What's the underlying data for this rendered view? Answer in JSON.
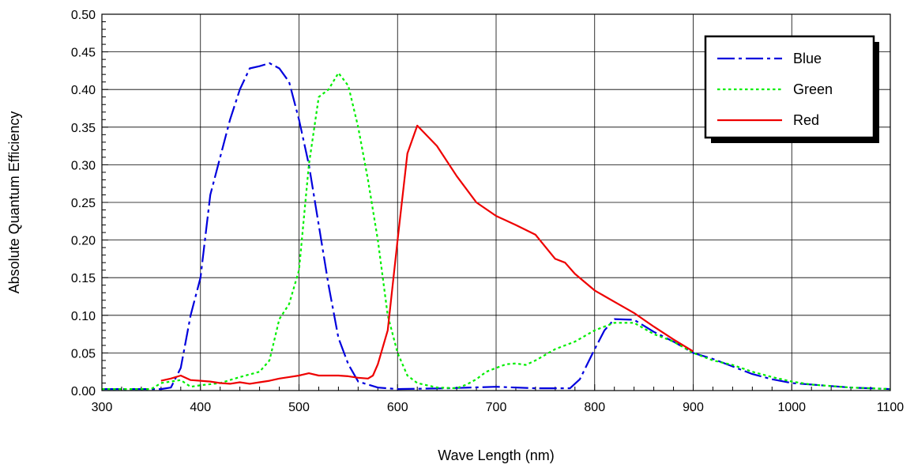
{
  "chart_data": {
    "type": "line",
    "xlabel": "Wave Length (nm)",
    "ylabel": "Absolute Quantum Efficiency",
    "xlim": [
      300,
      1100
    ],
    "ylim": [
      0,
      0.5
    ],
    "x_ticks": [
      "300",
      "400",
      "500",
      "600",
      "700",
      "800",
      "900",
      "1000",
      "1100"
    ],
    "y_ticks": [
      "0.00",
      "0.05",
      "0.10",
      "0.15",
      "0.20",
      "0.25",
      "0.30",
      "0.35",
      "0.40",
      "0.45",
      "0.50"
    ],
    "grid": true,
    "legend_position": "top-right",
    "series": [
      {
        "name": "Blue",
        "color": "#0000dd",
        "dash": "dash-dot",
        "points": [
          [
            300,
            0.002
          ],
          [
            360,
            0.002
          ],
          [
            370,
            0.004
          ],
          [
            380,
            0.03
          ],
          [
            390,
            0.1
          ],
          [
            400,
            0.15
          ],
          [
            410,
            0.26
          ],
          [
            420,
            0.31
          ],
          [
            430,
            0.36
          ],
          [
            440,
            0.4
          ],
          [
            450,
            0.428
          ],
          [
            460,
            0.431
          ],
          [
            470,
            0.435
          ],
          [
            480,
            0.428
          ],
          [
            490,
            0.41
          ],
          [
            500,
            0.36
          ],
          [
            510,
            0.3
          ],
          [
            520,
            0.22
          ],
          [
            530,
            0.14
          ],
          [
            540,
            0.07
          ],
          [
            550,
            0.035
          ],
          [
            560,
            0.012
          ],
          [
            570,
            0.008
          ],
          [
            580,
            0.004
          ],
          [
            600,
            0.002
          ],
          [
            650,
            0.003
          ],
          [
            700,
            0.005
          ],
          [
            740,
            0.003
          ],
          [
            775,
            0.003
          ],
          [
            785,
            0.015
          ],
          [
            800,
            0.055
          ],
          [
            810,
            0.08
          ],
          [
            820,
            0.095
          ],
          [
            840,
            0.094
          ],
          [
            860,
            0.078
          ],
          [
            880,
            0.065
          ],
          [
            900,
            0.05
          ],
          [
            920,
            0.042
          ],
          [
            940,
            0.032
          ],
          [
            960,
            0.022
          ],
          [
            980,
            0.015
          ],
          [
            1000,
            0.01
          ],
          [
            1020,
            0.008
          ],
          [
            1040,
            0.006
          ],
          [
            1060,
            0.004
          ],
          [
            1080,
            0.003
          ],
          [
            1100,
            0.002
          ]
        ]
      },
      {
        "name": "Green",
        "color": "#00ee00",
        "dash": "dotted",
        "points": [
          [
            300,
            0.002
          ],
          [
            350,
            0.002
          ],
          [
            360,
            0.01
          ],
          [
            370,
            0.012
          ],
          [
            380,
            0.014
          ],
          [
            390,
            0.005
          ],
          [
            400,
            0.007
          ],
          [
            420,
            0.01
          ],
          [
            440,
            0.018
          ],
          [
            460,
            0.025
          ],
          [
            470,
            0.04
          ],
          [
            480,
            0.095
          ],
          [
            490,
            0.115
          ],
          [
            500,
            0.16
          ],
          [
            510,
            0.3
          ],
          [
            520,
            0.39
          ],
          [
            530,
            0.4
          ],
          [
            540,
            0.422
          ],
          [
            550,
            0.405
          ],
          [
            560,
            0.35
          ],
          [
            570,
            0.28
          ],
          [
            580,
            0.2
          ],
          [
            590,
            0.1
          ],
          [
            600,
            0.05
          ],
          [
            610,
            0.02
          ],
          [
            620,
            0.01
          ],
          [
            640,
            0.004
          ],
          [
            660,
            0.003
          ],
          [
            670,
            0.008
          ],
          [
            680,
            0.015
          ],
          [
            690,
            0.025
          ],
          [
            700,
            0.03
          ],
          [
            710,
            0.035
          ],
          [
            720,
            0.036
          ],
          [
            730,
            0.034
          ],
          [
            740,
            0.04
          ],
          [
            760,
            0.055
          ],
          [
            780,
            0.065
          ],
          [
            800,
            0.08
          ],
          [
            820,
            0.09
          ],
          [
            840,
            0.09
          ],
          [
            860,
            0.075
          ],
          [
            880,
            0.065
          ],
          [
            900,
            0.05
          ],
          [
            920,
            0.04
          ],
          [
            940,
            0.034
          ],
          [
            960,
            0.025
          ],
          [
            980,
            0.018
          ],
          [
            1000,
            0.012
          ],
          [
            1020,
            0.008
          ],
          [
            1040,
            0.006
          ],
          [
            1060,
            0.004
          ],
          [
            1080,
            0.003
          ],
          [
            1100,
            0.002
          ]
        ]
      },
      {
        "name": "Red",
        "color": "#ee0000",
        "dash": "solid",
        "points": [
          [
            360,
            0.013
          ],
          [
            370,
            0.016
          ],
          [
            380,
            0.02
          ],
          [
            390,
            0.014
          ],
          [
            400,
            0.013
          ],
          [
            410,
            0.012
          ],
          [
            420,
            0.01
          ],
          [
            430,
            0.009
          ],
          [
            440,
            0.011
          ],
          [
            450,
            0.009
          ],
          [
            460,
            0.011
          ],
          [
            470,
            0.013
          ],
          [
            480,
            0.016
          ],
          [
            490,
            0.018
          ],
          [
            500,
            0.02
          ],
          [
            510,
            0.023
          ],
          [
            520,
            0.02
          ],
          [
            540,
            0.02
          ],
          [
            550,
            0.019
          ],
          [
            560,
            0.017
          ],
          [
            570,
            0.016
          ],
          [
            575,
            0.02
          ],
          [
            580,
            0.035
          ],
          [
            590,
            0.08
          ],
          [
            600,
            0.2
          ],
          [
            610,
            0.315
          ],
          [
            620,
            0.352
          ],
          [
            640,
            0.325
          ],
          [
            660,
            0.285
          ],
          [
            680,
            0.25
          ],
          [
            700,
            0.232
          ],
          [
            720,
            0.22
          ],
          [
            740,
            0.207
          ],
          [
            760,
            0.175
          ],
          [
            770,
            0.17
          ],
          [
            780,
            0.155
          ],
          [
            800,
            0.133
          ],
          [
            820,
            0.118
          ],
          [
            840,
            0.103
          ],
          [
            860,
            0.085
          ],
          [
            880,
            0.068
          ],
          [
            900,
            0.052
          ]
        ]
      }
    ]
  }
}
